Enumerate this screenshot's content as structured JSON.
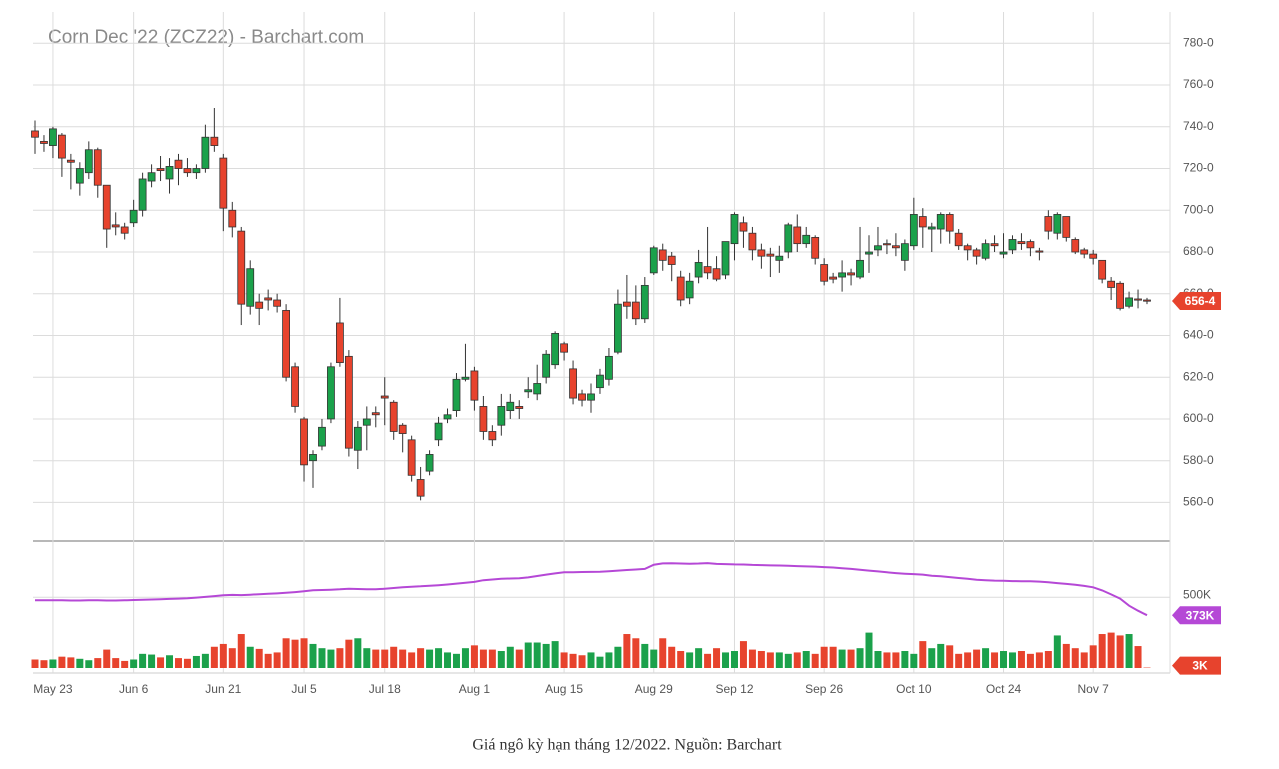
{
  "chart_data": {
    "type": "candlestick",
    "title": "Corn Dec '22 (ZCZ22) - Barchart.com",
    "categories": [
      null,
      null,
      "May 23",
      null,
      null,
      null,
      null,
      null,
      null,
      null,
      null,
      "Jun 6",
      null,
      null,
      null,
      null,
      null,
      null,
      null,
      null,
      null,
      "Jun 21",
      null,
      null,
      null,
      null,
      null,
      null,
      null,
      null,
      "Jul 5",
      null,
      null,
      null,
      null,
      null,
      null,
      null,
      null,
      "Jul 18",
      null,
      null,
      null,
      null,
      null,
      null,
      null,
      null,
      null,
      "Aug 1",
      null,
      null,
      null,
      null,
      null,
      null,
      null,
      null,
      null,
      "Aug 15",
      null,
      null,
      null,
      null,
      null,
      null,
      null,
      null,
      null,
      "Aug 29",
      null,
      null,
      null,
      null,
      null,
      null,
      null,
      null,
      "Sep 12",
      null,
      null,
      null,
      null,
      null,
      null,
      null,
      null,
      null,
      "Sep 26",
      null,
      null,
      null,
      null,
      null,
      null,
      null,
      null,
      null,
      "Oct 10",
      null,
      null,
      null,
      null,
      null,
      null,
      null,
      null,
      null,
      "Oct 24",
      null,
      null,
      null,
      null,
      null,
      null,
      null,
      null,
      null,
      "Nov 7",
      null,
      null,
      null,
      null,
      null,
      null
    ],
    "open": [
      738,
      733,
      731,
      736,
      724,
      713,
      718,
      729,
      712,
      693,
      692,
      694,
      700,
      714,
      720,
      715,
      724,
      720,
      718,
      720,
      735,
      725,
      700,
      690,
      654,
      656,
      658,
      657,
      652,
      625,
      600,
      580,
      587,
      600,
      646,
      630,
      585,
      597,
      603,
      611,
      608,
      597,
      590,
      571,
      575,
      590,
      600,
      604,
      619,
      623,
      606,
      594,
      597,
      604,
      606,
      613,
      612,
      620,
      626,
      636,
      624,
      612,
      609,
      615,
      619,
      632,
      656,
      656,
      648,
      670,
      681,
      678,
      668,
      658,
      668,
      673,
      672,
      669,
      684,
      694,
      689,
      681,
      679,
      676,
      680,
      692,
      684,
      687,
      674,
      668,
      668,
      670,
      668,
      679,
      681,
      684,
      683,
      676,
      683,
      697,
      691,
      691,
      698,
      689,
      683,
      681,
      677,
      684,
      679,
      681,
      685,
      685,
      680.5,
      697,
      689,
      697,
      686,
      681,
      679,
      676,
      666,
      665,
      654,
      657.5,
      657
    ],
    "high": [
      743,
      736,
      740,
      737,
      727,
      723,
      733,
      730,
      712,
      699,
      694,
      705,
      718,
      722,
      726,
      725,
      727,
      725,
      722,
      741,
      749,
      727,
      704,
      692,
      676,
      660,
      662,
      660,
      655,
      627,
      601,
      585,
      600,
      627,
      658,
      633,
      599,
      606,
      606,
      620,
      609,
      598,
      592,
      577,
      585,
      601,
      605,
      622,
      636,
      625,
      611,
      597,
      612,
      612,
      609,
      620,
      626,
      633,
      642,
      637,
      628,
      614,
      617,
      624,
      634,
      662,
      669,
      664,
      668,
      683,
      684,
      680,
      671,
      670,
      681,
      692,
      678,
      685,
      699,
      697,
      692,
      684,
      682,
      683,
      694,
      698,
      692,
      688,
      677,
      670,
      676,
      672,
      692,
      688,
      692,
      686,
      689,
      686,
      706,
      701,
      694,
      699,
      699,
      691,
      684,
      682,
      686,
      688,
      689,
      688,
      689,
      686,
      682,
      700,
      699,
      697,
      687,
      682,
      681,
      676,
      668,
      666,
      661,
      662,
      658
    ],
    "low": [
      727,
      728,
      725,
      716,
      710,
      707,
      715,
      706,
      682,
      688,
      686,
      692,
      697,
      711,
      714,
      708,
      712,
      716,
      715,
      718,
      728,
      690,
      687,
      645,
      650,
      645,
      652,
      651,
      618,
      603,
      570,
      567,
      585,
      598,
      625,
      582,
      576,
      585,
      596,
      597,
      590,
      584,
      570,
      561,
      573,
      587,
      598,
      601,
      618,
      604,
      590,
      587,
      592,
      600,
      600,
      610,
      609,
      617,
      624,
      628,
      607,
      606,
      603,
      612,
      616,
      631,
      648,
      645,
      646,
      669,
      671,
      666,
      654,
      655,
      665,
      667,
      666,
      667,
      676,
      682,
      676,
      672,
      668,
      670,
      677,
      680,
      682,
      674,
      664,
      665,
      661,
      664,
      667,
      670,
      678,
      679,
      678,
      671,
      681,
      682,
      680,
      684,
      684,
      681,
      676,
      674,
      676,
      680,
      677,
      679,
      681,
      678,
      676,
      686,
      686,
      685,
      679,
      677,
      674,
      665,
      657,
      652,
      653,
      653,
      655
    ],
    "close": [
      735,
      732,
      739,
      725,
      723,
      720,
      729,
      712,
      691,
      692,
      689,
      700,
      715,
      718,
      719,
      721,
      720,
      718,
      720,
      735,
      731,
      701,
      692,
      655,
      672,
      653,
      657,
      654,
      620,
      606,
      578,
      583,
      596,
      625,
      627,
      586,
      596,
      600,
      602,
      610,
      594,
      593,
      573,
      563,
      583,
      598,
      602,
      619,
      620,
      609,
      594,
      590,
      606,
      608,
      605,
      614,
      617,
      631,
      641,
      632,
      610,
      609,
      612,
      621,
      630,
      655,
      654,
      648,
      664,
      682,
      676,
      674,
      657,
      666,
      675,
      670,
      667,
      685,
      698,
      690,
      681,
      678,
      678,
      678,
      693,
      684,
      688,
      677,
      666,
      667,
      670,
      669,
      676,
      680,
      683,
      683.5,
      682,
      684,
      698,
      692,
      692,
      698,
      690,
      683,
      681,
      678,
      684,
      683,
      680,
      686,
      684,
      682,
      680,
      690,
      698,
      687,
      680,
      679,
      677,
      667,
      663,
      653,
      658,
      657,
      656.5
    ],
    "close_label": "656-4",
    "up_color": "#1ba14b",
    "down_color": "#e7432d",
    "ylim": [
      542,
      795
    ],
    "yticks": [
      {
        "value": 560,
        "label": "560-0"
      },
      {
        "value": 580,
        "label": "580-0"
      },
      {
        "value": 600,
        "label": "600-0"
      },
      {
        "value": 620,
        "label": "620-0"
      },
      {
        "value": 640,
        "label": "640-0"
      },
      {
        "value": 660,
        "label": "660-0"
      },
      {
        "value": 680,
        "label": "680-0"
      },
      {
        "value": 700,
        "label": "700-0"
      },
      {
        "value": 720,
        "label": "720-0"
      },
      {
        "value": 740,
        "label": "740-0"
      },
      {
        "value": 760,
        "label": "760-0"
      },
      {
        "value": 780,
        "label": "780-0"
      }
    ],
    "grid": true,
    "volume": {
      "values": [
        60,
        55,
        60,
        80,
        75,
        65,
        55,
        70,
        130,
        70,
        50,
        60,
        100,
        95,
        75,
        90,
        70,
        65,
        85,
        100,
        150,
        170,
        140,
        240,
        150,
        135,
        100,
        110,
        210,
        200,
        210,
        170,
        140,
        130,
        140,
        200,
        210,
        140,
        130,
        130,
        150,
        130,
        110,
        140,
        130,
        140,
        110,
        100,
        140,
        160,
        130,
        130,
        120,
        150,
        130,
        180,
        180,
        170,
        190,
        110,
        100,
        90,
        110,
        80,
        110,
        150,
        240,
        210,
        170,
        130,
        210,
        150,
        120,
        110,
        140,
        100,
        140,
        110,
        120,
        190,
        130,
        120,
        110,
        110,
        100,
        110,
        120,
        100,
        150,
        150,
        130,
        130,
        140,
        250,
        120,
        110,
        110,
        120,
        100,
        190,
        140,
        170,
        160,
        100,
        110,
        130,
        140,
        110,
        120,
        110,
        120,
        100,
        110,
        120,
        230,
        170,
        140,
        110,
        160,
        240,
        250,
        230,
        240,
        155,
        3
      ],
      "value_label": "3K",
      "ylim": [
        0,
        890
      ],
      "yticks": [
        {
          "value": 500,
          "label": "500K"
        }
      ]
    },
    "open_interest": {
      "color": "#b548d6",
      "values": [
        479,
        479,
        478,
        478,
        477,
        477,
        478,
        478,
        477,
        477,
        478,
        480,
        482,
        484,
        486,
        488,
        490,
        493,
        497,
        502,
        508,
        514,
        516,
        515,
        518,
        521,
        524,
        527,
        531,
        536,
        542,
        549,
        551,
        553,
        556,
        560,
        558,
        556,
        556,
        560,
        565,
        570,
        574,
        577,
        581,
        585,
        590,
        596,
        602,
        608,
        620,
        625,
        630,
        632,
        634,
        640,
        650,
        660,
        668,
        676,
        677,
        678,
        679,
        680,
        684,
        688,
        692,
        696,
        700,
        730,
        739,
        740,
        738,
        737,
        738,
        741,
        735,
        734,
        732,
        731,
        728,
        727,
        725,
        724,
        722,
        720,
        718,
        716,
        713,
        710,
        704,
        700,
        694,
        688,
        682,
        676,
        670,
        666,
        663,
        660,
        652,
        648,
        642,
        636,
        630,
        624,
        620,
        617,
        616,
        614,
        613,
        613,
        610,
        606,
        600,
        594,
        588,
        580,
        570,
        548,
        520,
        490,
        440,
        405,
        373
      ],
      "value_label": "373K"
    }
  },
  "caption": "Giá ngô kỳ hạn tháng 12/2022. Nguồn: Barchart"
}
